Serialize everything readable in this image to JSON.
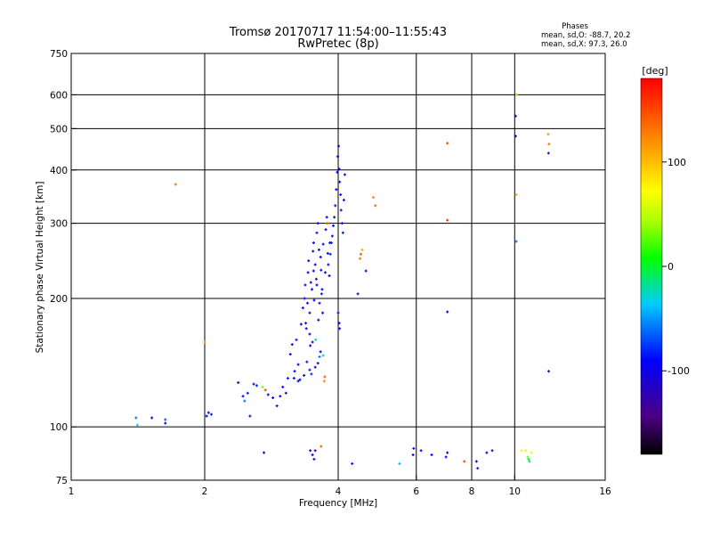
{
  "chart_data": {
    "type": "scatter",
    "title": "Tromsø 20170717 11:54:00–11:55:43",
    "subtitle": "RwPretec (8p)",
    "phase_stats": {
      "heading": "Phases",
      "line_o": "mean, sd,O: -88.7, 20.2",
      "line_x": "mean, sd,X:  97.3, 26.0"
    },
    "xlabel": "Frequency [MHz]",
    "ylabel": "Stationary phase Virtual Height [km]",
    "x_scale": "log",
    "y_scale": "log",
    "xlim": [
      1,
      16
    ],
    "ylim": [
      75,
      750
    ],
    "x_ticks": [
      1,
      2,
      4,
      6,
      8,
      10,
      16
    ],
    "y_ticks": [
      75,
      100,
      200,
      300,
      400,
      500,
      600,
      750
    ],
    "x_gridlines": [
      2,
      4,
      6,
      8,
      10
    ],
    "y_gridlines": [
      100,
      200,
      300,
      400,
      500,
      600
    ],
    "grid": true,
    "colorbar": {
      "label": "[deg]",
      "range": [
        -180,
        180
      ],
      "ticks": [
        100,
        0,
        -100
      ]
    },
    "series": [
      {
        "points": [
          [
            1.4,
            105,
            -60
          ],
          [
            1.41,
            101,
            -30
          ],
          [
            1.52,
            105,
            -110
          ],
          [
            1.63,
            102,
            -90
          ],
          [
            1.63,
            104,
            -70
          ],
          [
            2.02,
            106,
            -95
          ],
          [
            2.04,
            108,
            -100
          ],
          [
            2.07,
            107,
            -85
          ],
          [
            2.38,
            127,
            -100
          ],
          [
            2.44,
            118,
            -95
          ],
          [
            2.46,
            115,
            -60
          ],
          [
            2.5,
            120,
            -85
          ],
          [
            2.53,
            106,
            -110
          ],
          [
            2.58,
            126,
            -100
          ],
          [
            2.62,
            125,
            -80
          ],
          [
            2.7,
            124,
            30
          ],
          [
            2.74,
            122,
            150
          ],
          [
            2.78,
            119,
            -95
          ],
          [
            2.85,
            117,
            -90
          ],
          [
            2.91,
            112,
            -100
          ],
          [
            2.96,
            118,
            -105
          ],
          [
            3.0,
            124,
            -90
          ],
          [
            3.05,
            120,
            -100
          ],
          [
            3.08,
            130,
            -85
          ],
          [
            3.12,
            148,
            -95
          ],
          [
            3.15,
            156,
            -100
          ],
          [
            3.19,
            135,
            -100
          ],
          [
            3.22,
            160,
            -85
          ],
          [
            3.25,
            140,
            -95
          ],
          [
            3.28,
            129,
            -100
          ],
          [
            3.3,
            174,
            -90
          ],
          [
            3.33,
            190,
            -100
          ],
          [
            3.36,
            200,
            -95
          ],
          [
            3.37,
            215,
            -110
          ],
          [
            3.39,
            170,
            -100
          ],
          [
            3.4,
            142,
            -85
          ],
          [
            3.42,
            230,
            -95
          ],
          [
            3.43,
            245,
            -100
          ],
          [
            3.45,
            185,
            -90
          ],
          [
            3.46,
            155,
            -100
          ],
          [
            3.48,
            133,
            -80
          ],
          [
            3.49,
            210,
            -95
          ],
          [
            3.51,
            258,
            -100
          ],
          [
            3.52,
            270,
            -90
          ],
          [
            3.53,
            198,
            -105
          ],
          [
            3.55,
            240,
            -95
          ],
          [
            3.56,
            160,
            -30
          ],
          [
            3.57,
            222,
            -100
          ],
          [
            3.58,
            285,
            -85
          ],
          [
            3.6,
            300,
            -95
          ],
          [
            3.61,
            178,
            -100
          ],
          [
            3.62,
            260,
            -90
          ],
          [
            3.63,
            146,
            -60
          ],
          [
            3.65,
            250,
            -95
          ],
          [
            3.66,
            233,
            -100
          ],
          [
            3.67,
            205,
            -85
          ],
          [
            3.69,
            185,
            -95
          ],
          [
            3.7,
            268,
            -100
          ],
          [
            3.72,
            128,
            120
          ],
          [
            3.73,
            131,
            140
          ],
          [
            3.75,
            290,
            -95
          ],
          [
            3.77,
            310,
            -90
          ],
          [
            3.78,
            300,
            150
          ],
          [
            3.8,
            240,
            -100
          ],
          [
            3.82,
            226,
            -95
          ],
          [
            3.84,
            254,
            -85
          ],
          [
            3.86,
            270,
            -95
          ],
          [
            3.88,
            280,
            -100
          ],
          [
            3.9,
            296,
            -90
          ],
          [
            3.92,
            310,
            -95
          ],
          [
            3.94,
            330,
            -100
          ],
          [
            3.96,
            360,
            -95
          ],
          [
            3.98,
            395,
            -85
          ],
          [
            3.99,
            430,
            -95
          ],
          [
            4.01,
            455,
            -100
          ],
          [
            4.02,
            402,
            -100
          ],
          [
            4.03,
            375,
            -90
          ],
          [
            4.05,
            350,
            -95
          ],
          [
            4.06,
            322,
            -100
          ],
          [
            4.08,
            300,
            -95
          ],
          [
            4.1,
            285,
            -85
          ],
          [
            4.12,
            340,
            -100
          ],
          [
            4.14,
            390,
            -95
          ],
          [
            4.0,
            185,
            -100
          ],
          [
            4.02,
            175,
            -95
          ],
          [
            4.03,
            170,
            -100
          ],
          [
            4.43,
            205,
            -110
          ],
          [
            4.48,
            248,
            130
          ],
          [
            4.5,
            254,
            140
          ],
          [
            4.53,
            260,
            110
          ],
          [
            4.62,
            232,
            -90
          ],
          [
            4.8,
            345,
            120
          ],
          [
            4.85,
            330,
            135
          ],
          [
            7.05,
            462,
            150
          ],
          [
            7.05,
            305,
            160
          ],
          [
            7.05,
            186,
            -95
          ],
          [
            10.05,
            535,
            -120
          ],
          [
            10.05,
            480,
            -110
          ],
          [
            10.08,
            350,
            110
          ],
          [
            10.08,
            272,
            -60
          ],
          [
            10.1,
            600,
            105
          ],
          [
            11.9,
            485,
            115
          ],
          [
            11.95,
            460,
            130
          ],
          [
            11.92,
            438,
            -120
          ],
          [
            11.93,
            135,
            -110
          ],
          [
            1.72,
            370,
            130
          ],
          [
            2.0,
            158,
            120
          ],
          [
            2.72,
            87,
            -100
          ],
          [
            3.46,
            88,
            -95
          ],
          [
            3.5,
            86,
            -100
          ],
          [
            3.53,
            84,
            -90
          ],
          [
            3.55,
            88,
            -110
          ],
          [
            3.66,
            90,
            140
          ],
          [
            4.3,
            82,
            -85
          ],
          [
            5.5,
            82,
            -40
          ],
          [
            5.9,
            86,
            -95
          ],
          [
            5.92,
            89,
            -100
          ],
          [
            6.15,
            88,
            -90
          ],
          [
            6.5,
            86,
            -95
          ],
          [
            7.0,
            85,
            -100
          ],
          [
            7.05,
            87,
            -95
          ],
          [
            7.7,
            83,
            150
          ],
          [
            8.2,
            83,
            -90
          ],
          [
            8.25,
            80,
            -80
          ],
          [
            8.65,
            87,
            -95
          ],
          [
            8.9,
            88,
            -110
          ],
          [
            10.35,
            88,
            70
          ],
          [
            10.6,
            88,
            80
          ],
          [
            10.7,
            85,
            30
          ],
          [
            10.75,
            84,
            -30
          ],
          [
            10.8,
            83,
            -10
          ],
          [
            10.9,
            87,
            60
          ],
          [
            3.18,
            130,
            -90
          ],
          [
            3.25,
            128,
            -100
          ],
          [
            3.35,
            132,
            -95
          ],
          [
            3.45,
            136,
            -85
          ],
          [
            3.55,
            138,
            -95
          ],
          [
            3.6,
            141,
            -100
          ],
          [
            3.65,
            150,
            -90
          ],
          [
            3.7,
            147,
            -30
          ],
          [
            3.45,
            165,
            -95
          ],
          [
            3.5,
            158,
            -100
          ],
          [
            3.38,
            175,
            -95
          ],
          [
            3.41,
            195,
            -85
          ],
          [
            3.47,
            218,
            -100
          ],
          [
            3.52,
            232,
            -95
          ],
          [
            3.58,
            215,
            -90
          ],
          [
            3.63,
            195,
            -100
          ],
          [
            3.68,
            210,
            -95
          ],
          [
            3.74,
            230,
            -90
          ],
          [
            3.79,
            255,
            -100
          ],
          [
            3.83,
            270,
            -85
          ]
        ]
      }
    ]
  }
}
